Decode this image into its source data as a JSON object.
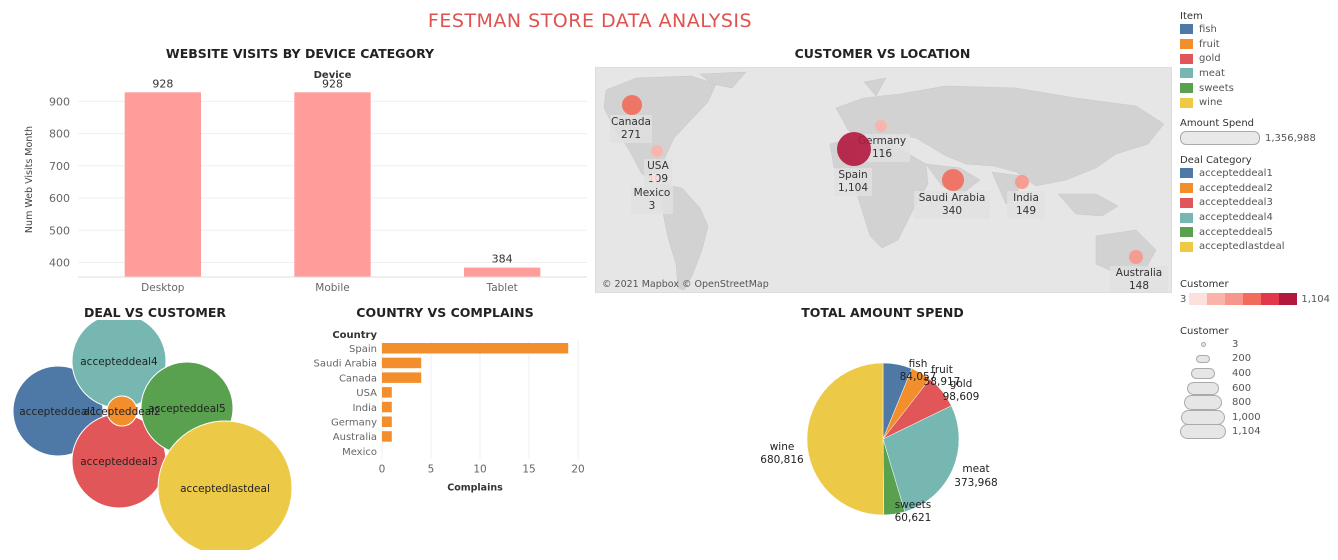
{
  "dashboard": {
    "title": "FESTMAN STORE DATA ANALYSIS"
  },
  "panels": {
    "visits_title": "WEBSITE VISITS BY DEVICE CATEGORY",
    "location_title": "CUSTOMER VS LOCATION",
    "deal_title": "DEAL VS CUSTOMER",
    "complain_title": "COUNTRY VS COMPLAINS",
    "spend_title": "TOTAL AMOUNT SPEND"
  },
  "map": {
    "attribution": "© 2021 Mapbox © OpenStreetMap",
    "points": [
      {
        "label": "Canada",
        "value": "271",
        "color": "#f26b5b"
      },
      {
        "label": "USA",
        "value": "109",
        "color": "#fbb3a9"
      },
      {
        "label": "Mexico",
        "value": "3",
        "color": "#fde0dc"
      },
      {
        "label": "Germany",
        "value": "116",
        "color": "#fbb3a9"
      },
      {
        "label": "Spain",
        "value": "1,104",
        "color": "#b2183e"
      },
      {
        "label": "Saudi Arabia",
        "value": "340",
        "color": "#f26b5b"
      },
      {
        "label": "India",
        "value": "149",
        "color": "#f7968a"
      },
      {
        "label": "Australia",
        "value": "148",
        "color": "#f7968a"
      }
    ]
  },
  "legends": {
    "item": {
      "title": "Item",
      "entries": [
        {
          "label": "fish",
          "color": "#4e79a7"
        },
        {
          "label": "fruit",
          "color": "#f28e2b"
        },
        {
          "label": "gold",
          "color": "#e15759"
        },
        {
          "label": "meat",
          "color": "#76b7b2"
        },
        {
          "label": "sweets",
          "color": "#59a14f"
        },
        {
          "label": "wine",
          "color": "#edc948"
        }
      ]
    },
    "amount": {
      "title": "Amount Spend",
      "value": "1,356,988"
    },
    "deal": {
      "title": "Deal Category",
      "entries": [
        {
          "label": "accepteddeal1",
          "color": "#4e79a7"
        },
        {
          "label": "accepteddeal2",
          "color": "#f28e2b"
        },
        {
          "label": "accepteddeal3",
          "color": "#e15759"
        },
        {
          "label": "accepteddeal4",
          "color": "#76b7b2"
        },
        {
          "label": "accepteddeal5",
          "color": "#59a14f"
        },
        {
          "label": "acceptedlastdeal",
          "color": "#edc948"
        }
      ]
    },
    "customer_color": {
      "title": "Customer",
      "min": "3",
      "max": "1,104",
      "colors": [
        "#fde0dc",
        "#fbb3a9",
        "#f7968a",
        "#f26b5b",
        "#e0394a",
        "#b2183e"
      ]
    },
    "customer_size": {
      "title": "Customer",
      "entries": [
        "3",
        "200",
        "400",
        "600",
        "800",
        "1,000",
        "1,104"
      ]
    }
  },
  "chart_data": [
    {
      "type": "bar",
      "title": "WEBSITE VISITS BY DEVICE CATEGORY",
      "header": "Device",
      "categories": [
        "Desktop",
        "Mobile",
        "Tablet"
      ],
      "values": [
        928,
        928,
        384
      ],
      "value_labels": [
        "928",
        "928",
        "384"
      ],
      "ylabel": "Num Web Visits Month",
      "ylim": [
        355,
        960
      ],
      "yticks": [
        400,
        500,
        600,
        700,
        800,
        900
      ],
      "color": "#ff9d9a"
    },
    {
      "type": "bubble",
      "title": "DEAL VS CUSTOMER",
      "categories": [
        "accepteddeal1",
        "accepteddeal2",
        "accepteddeal3",
        "accepteddeal4",
        "accepteddeal5",
        "acceptedlastdeal"
      ],
      "colors": [
        "#4e79a7",
        "#f28e2b",
        "#e15759",
        "#76b7b2",
        "#59a14f",
        "#edc948"
      ]
    },
    {
      "type": "bar",
      "orientation": "horizontal",
      "title": "COUNTRY VS COMPLAINS",
      "header": "Country",
      "categories": [
        "Spain",
        "Saudi Arabia",
        "Canada",
        "USA",
        "India",
        "Germany",
        "Australia",
        "Mexico"
      ],
      "values": [
        19,
        4,
        4,
        1,
        1,
        1,
        1,
        0
      ],
      "xlabel": "Complains",
      "xlim": [
        0,
        20
      ],
      "xticks": [
        0,
        5,
        10,
        15,
        20
      ],
      "color": "#f28e2b"
    },
    {
      "type": "pie",
      "title": "TOTAL AMOUNT SPEND",
      "categories": [
        "fish",
        "fruit",
        "gold",
        "meat",
        "sweets",
        "wine"
      ],
      "values": [
        84057,
        58917,
        98609,
        373968,
        60621,
        680816
      ],
      "value_labels": [
        "84,057",
        "58,917",
        "98,609",
        "373,968",
        "60,621",
        "680,816"
      ],
      "colors": [
        "#4e79a7",
        "#f28e2b",
        "#e15759",
        "#76b7b2",
        "#59a14f",
        "#edc948"
      ]
    }
  ]
}
